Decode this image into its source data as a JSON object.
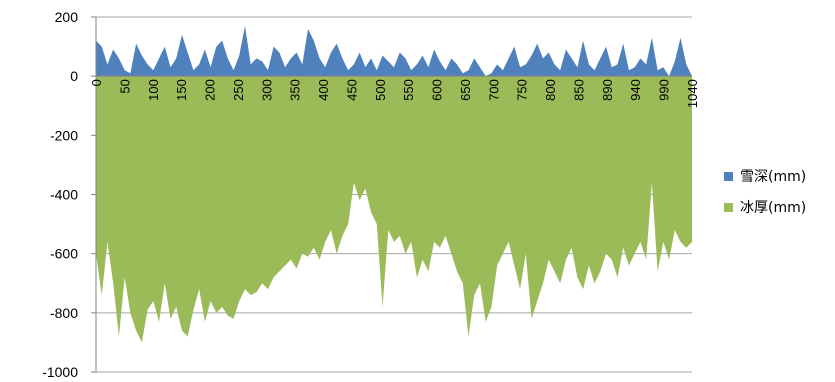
{
  "chart_data": {
    "type": "area",
    "ylim": [
      -1000,
      200
    ],
    "y_ticks": [
      "200",
      "0",
      "-200",
      "-400",
      "-600",
      "-800",
      "-1000"
    ],
    "x_tick_labels": [
      "0",
      "50",
      "100",
      "150",
      "200",
      "250",
      "300",
      "350",
      "400",
      "450",
      "500",
      "550",
      "600",
      "650",
      "700",
      "750",
      "800",
      "850",
      "890",
      "940",
      "990",
      "1040"
    ],
    "grid": true,
    "legend_position": "right",
    "series": [
      {
        "name": "雪深(mm)",
        "color": "#4f81bd",
        "x": [
          0,
          10,
          20,
          30,
          40,
          50,
          60,
          70,
          80,
          90,
          100,
          110,
          120,
          130,
          140,
          150,
          160,
          170,
          180,
          190,
          200,
          210,
          220,
          230,
          240,
          250,
          260,
          270,
          280,
          290,
          300,
          310,
          320,
          330,
          340,
          350,
          360,
          370,
          380,
          390,
          400,
          410,
          420,
          430,
          440,
          450,
          460,
          470,
          480,
          490,
          500,
          510,
          520,
          530,
          540,
          550,
          560,
          570,
          580,
          590,
          600,
          610,
          620,
          630,
          640,
          650,
          660,
          670,
          680,
          690,
          700,
          710,
          720,
          730,
          740,
          750,
          760,
          770,
          780,
          790,
          800,
          810,
          820,
          830,
          840,
          850,
          860,
          870,
          880,
          890,
          900,
          910,
          920,
          930,
          940,
          950,
          960,
          970,
          980,
          990,
          1000,
          1010,
          1020,
          1030,
          1040
        ],
        "values": [
          120,
          100,
          40,
          90,
          60,
          20,
          10,
          110,
          70,
          40,
          20,
          60,
          100,
          30,
          60,
          140,
          80,
          20,
          40,
          90,
          30,
          100,
          120,
          60,
          20,
          70,
          170,
          40,
          60,
          50,
          20,
          100,
          80,
          30,
          60,
          80,
          40,
          160,
          120,
          60,
          30,
          80,
          110,
          60,
          20,
          40,
          80,
          30,
          60,
          20,
          70,
          50,
          30,
          80,
          60,
          20,
          40,
          70,
          30,
          90,
          50,
          20,
          60,
          40,
          10,
          20,
          60,
          30,
          0,
          10,
          40,
          20,
          60,
          100,
          30,
          40,
          70,
          110,
          60,
          80,
          40,
          20,
          90,
          60,
          30,
          120,
          40,
          20,
          60,
          100,
          30,
          40,
          110,
          20,
          30,
          60,
          40,
          130,
          20,
          30,
          0,
          50,
          130,
          40,
          0
        ]
      },
      {
        "name": "冰厚(mm)",
        "color": "#9bbb59",
        "x": [
          0,
          10,
          20,
          30,
          40,
          50,
          60,
          70,
          80,
          90,
          100,
          110,
          120,
          130,
          140,
          150,
          160,
          170,
          180,
          190,
          200,
          210,
          220,
          230,
          240,
          250,
          260,
          270,
          280,
          290,
          300,
          310,
          320,
          330,
          340,
          350,
          360,
          370,
          380,
          390,
          400,
          410,
          420,
          430,
          440,
          450,
          460,
          470,
          480,
          490,
          500,
          510,
          520,
          530,
          540,
          550,
          560,
          570,
          580,
          590,
          600,
          610,
          620,
          630,
          640,
          650,
          660,
          670,
          680,
          690,
          700,
          710,
          720,
          730,
          740,
          750,
          760,
          770,
          780,
          790,
          800,
          810,
          820,
          830,
          840,
          850,
          860,
          870,
          880,
          890,
          900,
          910,
          920,
          930,
          940,
          950,
          960,
          970,
          980,
          990,
          1000,
          1010,
          1020,
          1030,
          1040
        ],
        "values": [
          -600,
          -740,
          -560,
          -700,
          -880,
          -680,
          -800,
          -860,
          -900,
          -790,
          -760,
          -830,
          -700,
          -820,
          -780,
          -860,
          -880,
          -790,
          -720,
          -830,
          -760,
          -800,
          -780,
          -810,
          -820,
          -760,
          -720,
          -740,
          -730,
          -700,
          -720,
          -680,
          -660,
          -640,
          -620,
          -650,
          -600,
          -610,
          -580,
          -620,
          -560,
          -520,
          -600,
          -540,
          -500,
          -360,
          -420,
          -380,
          -460,
          -500,
          -780,
          -520,
          -560,
          -540,
          -600,
          -560,
          -680,
          -620,
          -660,
          -560,
          -580,
          -540,
          -600,
          -660,
          -700,
          -880,
          -740,
          -700,
          -830,
          -780,
          -640,
          -600,
          -560,
          -640,
          -720,
          -600,
          -820,
          -760,
          -700,
          -620,
          -660,
          -700,
          -620,
          -580,
          -680,
          -720,
          -640,
          -700,
          -660,
          -600,
          -620,
          -680,
          -580,
          -640,
          -600,
          -560,
          -620,
          -360,
          -660,
          -560,
          -620,
          -520,
          -560,
          -580,
          -560
        ]
      }
    ]
  }
}
